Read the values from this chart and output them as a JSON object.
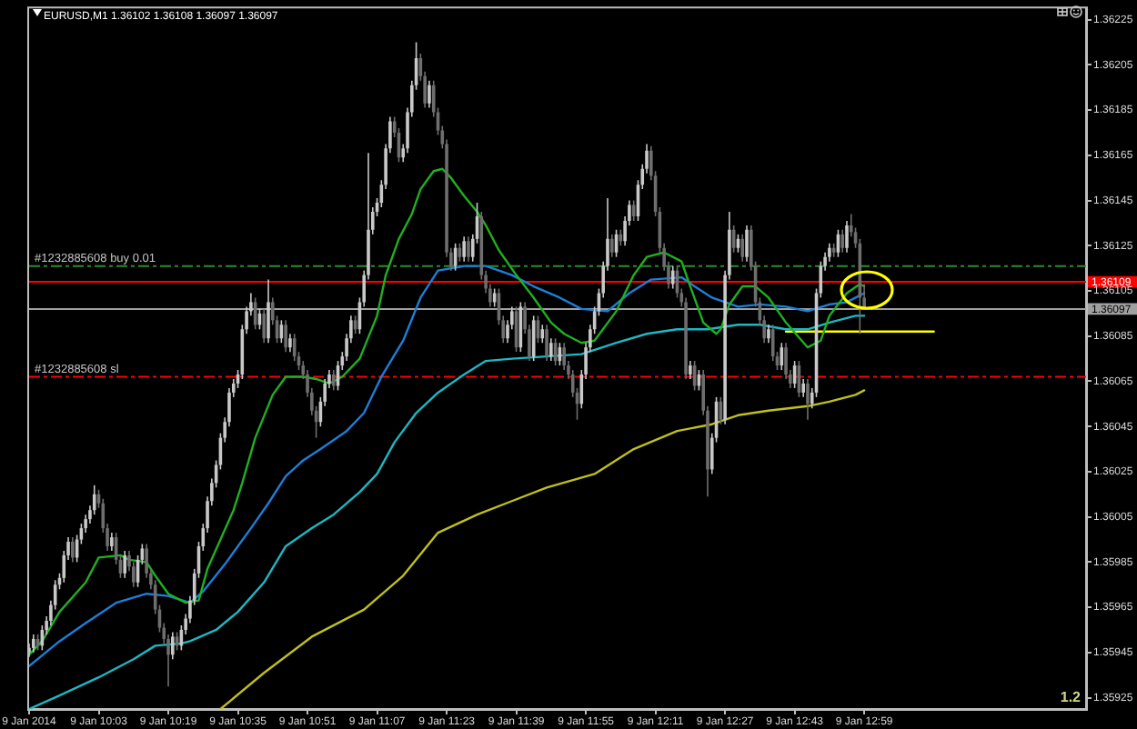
{
  "chart_data": {
    "type": "candlestick",
    "title": "EURUSD,M1 1.36102 1.36108 1.36097 1.36097",
    "xlim": [
      "2014-01-09T09:47",
      "2014-01-09T13:50"
    ],
    "ylim": [
      1.3592,
      1.3623
    ],
    "xticks": [
      {
        "value": "2014-01-09T09:47",
        "label": "9 Jan 2014"
      },
      {
        "value": "2014-01-09T10:03",
        "label": "9 Jan 10:03"
      },
      {
        "value": "2014-01-09T10:19",
        "label": "9 Jan 10:19"
      },
      {
        "value": "2014-01-09T10:35",
        "label": "9 Jan 10:35"
      },
      {
        "value": "2014-01-09T10:51",
        "label": "9 Jan 10:51"
      },
      {
        "value": "2014-01-09T11:07",
        "label": "9 Jan 11:07"
      },
      {
        "value": "2014-01-09T11:23",
        "label": "9 Jan 11:23"
      },
      {
        "value": "2014-01-09T11:39",
        "label": "9 Jan 11:39"
      },
      {
        "value": "2014-01-09T11:55",
        "label": "9 Jan 11:55"
      },
      {
        "value": "2014-01-09T12:11",
        "label": "9 Jan 12:11"
      },
      {
        "value": "2014-01-09T12:27",
        "label": "9 Jan 12:27"
      },
      {
        "value": "2014-01-09T12:43",
        "label": "9 Jan 12:43"
      },
      {
        "value": "2014-01-09T12:59",
        "label": "9 Jan 12:59"
      }
    ],
    "yticks": [
      1.35925,
      1.35945,
      1.35965,
      1.35985,
      1.36005,
      1.36025,
      1.36045,
      1.36065,
      1.36085,
      1.36105,
      1.36125,
      1.36145,
      1.36165,
      1.36185,
      1.36205,
      1.36225
    ],
    "x": [
      "2014-01-09T09:47",
      "2014-01-09T09:48",
      "2014-01-09T09:49",
      "2014-01-09T09:50",
      "2014-01-09T09:51",
      "2014-01-09T09:52",
      "2014-01-09T09:53",
      "2014-01-09T09:54",
      "2014-01-09T09:55",
      "2014-01-09T09:56",
      "2014-01-09T09:57",
      "2014-01-09T09:58",
      "2014-01-09T09:59",
      "2014-01-09T10:00",
      "2014-01-09T10:01",
      "2014-01-09T10:02",
      "2014-01-09T10:03",
      "2014-01-09T10:04",
      "2014-01-09T10:05",
      "2014-01-09T10:06",
      "2014-01-09T10:07",
      "2014-01-09T10:08",
      "2014-01-09T10:09",
      "2014-01-09T10:10",
      "2014-01-09T10:11",
      "2014-01-09T10:12",
      "2014-01-09T10:13",
      "2014-01-09T10:14",
      "2014-01-09T10:15",
      "2014-01-09T10:16",
      "2014-01-09T10:17",
      "2014-01-09T10:18",
      "2014-01-09T10:19",
      "2014-01-09T10:20",
      "2014-01-09T10:21",
      "2014-01-09T10:22",
      "2014-01-09T10:23",
      "2014-01-09T10:24",
      "2014-01-09T10:25",
      "2014-01-09T10:26",
      "2014-01-09T10:27",
      "2014-01-09T10:28",
      "2014-01-09T10:29",
      "2014-01-09T10:30",
      "2014-01-09T10:31",
      "2014-01-09T10:32",
      "2014-01-09T10:33",
      "2014-01-09T10:34",
      "2014-01-09T10:35",
      "2014-01-09T10:36",
      "2014-01-09T10:37",
      "2014-01-09T10:38",
      "2014-01-09T10:39",
      "2014-01-09T10:40",
      "2014-01-09T10:41",
      "2014-01-09T10:42",
      "2014-01-09T10:43",
      "2014-01-09T10:44",
      "2014-01-09T10:45",
      "2014-01-09T10:46",
      "2014-01-09T10:47",
      "2014-01-09T10:48",
      "2014-01-09T10:49",
      "2014-01-09T10:50",
      "2014-01-09T10:51",
      "2014-01-09T10:52",
      "2014-01-09T10:53",
      "2014-01-09T10:54",
      "2014-01-09T10:55",
      "2014-01-09T10:56",
      "2014-01-09T10:57",
      "2014-01-09T10:58",
      "2014-01-09T10:59",
      "2014-01-09T11:00",
      "2014-01-09T11:01",
      "2014-01-09T11:02",
      "2014-01-09T11:03",
      "2014-01-09T11:04",
      "2014-01-09T11:05",
      "2014-01-09T11:06",
      "2014-01-09T11:07",
      "2014-01-09T11:08",
      "2014-01-09T11:09",
      "2014-01-09T11:10",
      "2014-01-09T11:11",
      "2014-01-09T11:12",
      "2014-01-09T11:13",
      "2014-01-09T11:14",
      "2014-01-09T11:15",
      "2014-01-09T11:16",
      "2014-01-09T11:17",
      "2014-01-09T11:18",
      "2014-01-09T11:19",
      "2014-01-09T11:20",
      "2014-01-09T11:21",
      "2014-01-09T11:22",
      "2014-01-09T11:23",
      "2014-01-09T11:24",
      "2014-01-09T11:25",
      "2014-01-09T11:26",
      "2014-01-09T11:27",
      "2014-01-09T11:28",
      "2014-01-09T11:29",
      "2014-01-09T11:30",
      "2014-01-09T11:31",
      "2014-01-09T11:32",
      "2014-01-09T11:33",
      "2014-01-09T11:34",
      "2014-01-09T11:35",
      "2014-01-09T11:36",
      "2014-01-09T11:37",
      "2014-01-09T11:38",
      "2014-01-09T11:39",
      "2014-01-09T11:40",
      "2014-01-09T11:41",
      "2014-01-09T11:42",
      "2014-01-09T11:43",
      "2014-01-09T11:44",
      "2014-01-09T11:45",
      "2014-01-09T11:46",
      "2014-01-09T11:47",
      "2014-01-09T11:48",
      "2014-01-09T11:49",
      "2014-01-09T11:50",
      "2014-01-09T11:51",
      "2014-01-09T11:52",
      "2014-01-09T11:53",
      "2014-01-09T11:54",
      "2014-01-09T11:55",
      "2014-01-09T11:56",
      "2014-01-09T11:57",
      "2014-01-09T11:58",
      "2014-01-09T11:59",
      "2014-01-09T12:00",
      "2014-01-09T12:01",
      "2014-01-09T12:02",
      "2014-01-09T12:03",
      "2014-01-09T12:04",
      "2014-01-09T12:05",
      "2014-01-09T12:06",
      "2014-01-09T12:07",
      "2014-01-09T12:08",
      "2014-01-09T12:09",
      "2014-01-09T12:10",
      "2014-01-09T12:11",
      "2014-01-09T12:12",
      "2014-01-09T12:13",
      "2014-01-09T12:14",
      "2014-01-09T12:15",
      "2014-01-09T12:16",
      "2014-01-09T12:17",
      "2014-01-09T12:18",
      "2014-01-09T12:19",
      "2014-01-09T12:20",
      "2014-01-09T12:21",
      "2014-01-09T12:22",
      "2014-01-09T12:23",
      "2014-01-09T12:24",
      "2014-01-09T12:25",
      "2014-01-09T12:26",
      "2014-01-09T12:27",
      "2014-01-09T12:28",
      "2014-01-09T12:29",
      "2014-01-09T12:30",
      "2014-01-09T12:31",
      "2014-01-09T12:32",
      "2014-01-09T12:33",
      "2014-01-09T12:34",
      "2014-01-09T12:35",
      "2014-01-09T12:36",
      "2014-01-09T12:37",
      "2014-01-09T12:38",
      "2014-01-09T12:39",
      "2014-01-09T12:40",
      "2014-01-09T12:41",
      "2014-01-09T12:42",
      "2014-01-09T12:43",
      "2014-01-09T12:44",
      "2014-01-09T12:45",
      "2014-01-09T12:46",
      "2014-01-09T12:47",
      "2014-01-09T12:48",
      "2014-01-09T12:49",
      "2014-01-09T12:50",
      "2014-01-09T12:51",
      "2014-01-09T12:52",
      "2014-01-09T12:53",
      "2014-01-09T12:54",
      "2014-01-09T12:55",
      "2014-01-09T12:56",
      "2014-01-09T12:57",
      "2014-01-09T12:58",
      "2014-01-09T12:59"
    ],
    "ohlc": [
      [
        1.35945,
        1.35949,
        1.35943,
        1.35947
      ],
      [
        1.35947,
        1.35953,
        1.35945,
        1.35951
      ],
      [
        1.35951,
        1.35953,
        1.35946,
        1.35948
      ],
      [
        1.35948,
        1.35957,
        1.35946,
        1.35955
      ],
      [
        1.35955,
        1.35961,
        1.35953,
        1.35959
      ],
      [
        1.35959,
        1.35968,
        1.35957,
        1.35966
      ],
      [
        1.35966,
        1.35977,
        1.35964,
        1.35975
      ],
      [
        1.35975,
        1.3598,
        1.35973,
        1.35978
      ],
      [
        1.35978,
        1.3599,
        1.35976,
        1.35988
      ],
      [
        1.35988,
        1.35996,
        1.35986,
        1.35994
      ],
      [
        1.35994,
        1.35996,
        1.35985,
        1.35987
      ],
      [
        1.35987,
        1.35997,
        1.35985,
        1.35995
      ],
      [
        1.35995,
        1.36002,
        1.35993,
        1.36
      ],
      [
        1.36,
        1.36006,
        1.35998,
        1.36004
      ],
      [
        1.36004,
        1.3601,
        1.36002,
        1.36008
      ],
      [
        1.36008,
        1.36019,
        1.36006,
        1.36015
      ],
      [
        1.36015,
        1.36017,
        1.36009,
        1.36011
      ],
      [
        1.36011,
        1.36013,
        1.35998,
        1.36
      ],
      [
        1.36,
        1.36002,
        1.3599,
        1.35992
      ],
      [
        1.35992,
        1.35998,
        1.3599,
        1.35996
      ],
      [
        1.35996,
        1.35998,
        1.35984,
        1.35986
      ],
      [
        1.35986,
        1.35988,
        1.35978,
        1.3598
      ],
      [
        1.3598,
        1.3599,
        1.35978,
        1.35988
      ],
      [
        1.35988,
        1.3599,
        1.35981,
        1.35983
      ],
      [
        1.35983,
        1.35985,
        1.35974,
        1.35976
      ],
      [
        1.35976,
        1.35988,
        1.35974,
        1.35986
      ],
      [
        1.35986,
        1.35993,
        1.35984,
        1.35991
      ],
      [
        1.35991,
        1.35993,
        1.35978,
        1.3598
      ],
      [
        1.3598,
        1.35982,
        1.35973,
        1.35975
      ],
      [
        1.35975,
        1.35977,
        1.35962,
        1.35964
      ],
      [
        1.35964,
        1.35966,
        1.35954,
        1.35956
      ],
      [
        1.35956,
        1.35958,
        1.35949,
        1.35951
      ],
      [
        1.35951,
        1.35953,
        1.3593,
        1.35944
      ],
      [
        1.35944,
        1.35954,
        1.35942,
        1.35952
      ],
      [
        1.35952,
        1.35954,
        1.35946,
        1.35948
      ],
      [
        1.35948,
        1.35957,
        1.35946,
        1.35955
      ],
      [
        1.35955,
        1.35962,
        1.35953,
        1.3596
      ],
      [
        1.3596,
        1.3597,
        1.35958,
        1.35968
      ],
      [
        1.35968,
        1.35982,
        1.35966,
        1.3598
      ],
      [
        1.3598,
        1.35994,
        1.35978,
        1.35992
      ],
      [
        1.35992,
        1.36002,
        1.3599,
        1.36
      ],
      [
        1.36,
        1.36014,
        1.35998,
        1.36012
      ],
      [
        1.36012,
        1.36022,
        1.3601,
        1.3602
      ],
      [
        1.3602,
        1.3603,
        1.36018,
        1.36028
      ],
      [
        1.36028,
        1.36042,
        1.36026,
        1.3604
      ],
      [
        1.3604,
        1.36049,
        1.36038,
        1.36047
      ],
      [
        1.36047,
        1.36062,
        1.36045,
        1.3606
      ],
      [
        1.3606,
        1.36066,
        1.36058,
        1.36064
      ],
      [
        1.36064,
        1.3607,
        1.36062,
        1.36068
      ],
      [
        1.36068,
        1.3609,
        1.36066,
        1.36088
      ],
      [
        1.36088,
        1.36098,
        1.36086,
        1.36096
      ],
      [
        1.36096,
        1.36104,
        1.36094,
        1.361
      ],
      [
        1.361,
        1.36102,
        1.36088,
        1.3609
      ],
      [
        1.3609,
        1.36097,
        1.36088,
        1.36095
      ],
      [
        1.36095,
        1.36097,
        1.36082,
        1.36084
      ],
      [
        1.36084,
        1.3611,
        1.36082,
        1.361
      ],
      [
        1.361,
        1.36102,
        1.3609,
        1.36092
      ],
      [
        1.36092,
        1.36094,
        1.36082,
        1.36084
      ],
      [
        1.36084,
        1.36092,
        1.36082,
        1.3609
      ],
      [
        1.3609,
        1.36092,
        1.36078,
        1.3608
      ],
      [
        1.3608,
        1.36086,
        1.36078,
        1.36084
      ],
      [
        1.36084,
        1.36086,
        1.36074,
        1.36076
      ],
      [
        1.36076,
        1.36078,
        1.3607,
        1.36072
      ],
      [
        1.36072,
        1.36074,
        1.36066,
        1.36068
      ],
      [
        1.36068,
        1.3607,
        1.36058,
        1.3606
      ],
      [
        1.3606,
        1.36062,
        1.3605,
        1.36052
      ],
      [
        1.36052,
        1.36054,
        1.3604,
        1.36047
      ],
      [
        1.36047,
        1.36058,
        1.36045,
        1.36056
      ],
      [
        1.36056,
        1.36066,
        1.36054,
        1.36064
      ],
      [
        1.36064,
        1.3607,
        1.36062,
        1.36068
      ],
      [
        1.36068,
        1.3607,
        1.36061,
        1.36063
      ],
      [
        1.36063,
        1.36074,
        1.36061,
        1.36072
      ],
      [
        1.36072,
        1.36078,
        1.3607,
        1.36076
      ],
      [
        1.36076,
        1.36086,
        1.36074,
        1.36084
      ],
      [
        1.36084,
        1.36094,
        1.36082,
        1.36092
      ],
      [
        1.36092,
        1.36094,
        1.36086,
        1.36088
      ],
      [
        1.36088,
        1.36102,
        1.36086,
        1.361
      ],
      [
        1.361,
        1.36114,
        1.36098,
        1.36112
      ],
      [
        1.36112,
        1.36166,
        1.3611,
        1.36132
      ],
      [
        1.36132,
        1.36142,
        1.3613,
        1.3614
      ],
      [
        1.3614,
        1.36146,
        1.36138,
        1.36144
      ],
      [
        1.36144,
        1.36154,
        1.36142,
        1.36152
      ],
      [
        1.36152,
        1.3617,
        1.3615,
        1.36168
      ],
      [
        1.36168,
        1.36182,
        1.36166,
        1.3618
      ],
      [
        1.3618,
        1.36182,
        1.36173,
        1.36175
      ],
      [
        1.36175,
        1.36177,
        1.36162,
        1.36164
      ],
      [
        1.36164,
        1.3617,
        1.36162,
        1.36168
      ],
      [
        1.36168,
        1.36186,
        1.36166,
        1.36184
      ],
      [
        1.36184,
        1.36198,
        1.36182,
        1.36196
      ],
      [
        1.36196,
        1.36215,
        1.36194,
        1.36208
      ],
      [
        1.36208,
        1.3621,
        1.36198,
        1.362
      ],
      [
        1.362,
        1.36202,
        1.36186,
        1.36188
      ],
      [
        1.36188,
        1.36198,
        1.36186,
        1.36196
      ],
      [
        1.36196,
        1.36198,
        1.36182,
        1.36184
      ],
      [
        1.36184,
        1.36186,
        1.36174,
        1.36176
      ],
      [
        1.36176,
        1.36178,
        1.36168,
        1.3617
      ],
      [
        1.3617,
        1.36172,
        1.3612,
        1.36122
      ],
      [
        1.36122,
        1.36124,
        1.36114,
        1.36116
      ],
      [
        1.36116,
        1.36126,
        1.36114,
        1.36124
      ],
      [
        1.36124,
        1.36126,
        1.36118,
        1.3612
      ],
      [
        1.3612,
        1.36129,
        1.36118,
        1.36127
      ],
      [
        1.36127,
        1.36129,
        1.36118,
        1.3612
      ],
      [
        1.3612,
        1.3613,
        1.36118,
        1.36128
      ],
      [
        1.36128,
        1.36144,
        1.36126,
        1.36138
      ],
      [
        1.36138,
        1.3614,
        1.3611,
        1.36112
      ],
      [
        1.36112,
        1.36114,
        1.36104,
        1.36106
      ],
      [
        1.36106,
        1.36108,
        1.36098,
        1.361
      ],
      [
        1.361,
        1.36106,
        1.36098,
        1.36104
      ],
      [
        1.36104,
        1.36106,
        1.3609,
        1.36092
      ],
      [
        1.36092,
        1.36094,
        1.36082,
        1.36084
      ],
      [
        1.36084,
        1.36092,
        1.36082,
        1.3609
      ],
      [
        1.3609,
        1.36098,
        1.36088,
        1.36096
      ],
      [
        1.36096,
        1.36098,
        1.36078,
        1.3608
      ],
      [
        1.3608,
        1.361,
        1.36078,
        1.36098
      ],
      [
        1.36098,
        1.361,
        1.36086,
        1.36088
      ],
      [
        1.36088,
        1.3609,
        1.36074,
        1.36076
      ],
      [
        1.36076,
        1.36094,
        1.36074,
        1.36092
      ],
      [
        1.36092,
        1.36094,
        1.36082,
        1.36084
      ],
      [
        1.36084,
        1.3609,
        1.36082,
        1.36088
      ],
      [
        1.36088,
        1.3609,
        1.36074,
        1.36076
      ],
      [
        1.36076,
        1.36084,
        1.36074,
        1.36082
      ],
      [
        1.36082,
        1.36084,
        1.36072,
        1.36074
      ],
      [
        1.36074,
        1.36082,
        1.36072,
        1.3608
      ],
      [
        1.3608,
        1.36082,
        1.3607,
        1.36072
      ],
      [
        1.36072,
        1.36074,
        1.36066,
        1.36068
      ],
      [
        1.36068,
        1.3607,
        1.36058,
        1.3606
      ],
      [
        1.3606,
        1.36062,
        1.36048,
        1.36055
      ],
      [
        1.36055,
        1.3607,
        1.36053,
        1.36068
      ],
      [
        1.36068,
        1.36082,
        1.36066,
        1.3608
      ],
      [
        1.3608,
        1.3609,
        1.36078,
        1.36088
      ],
      [
        1.36088,
        1.36098,
        1.36086,
        1.36096
      ],
      [
        1.36096,
        1.36106,
        1.36094,
        1.36104
      ],
      [
        1.36104,
        1.36118,
        1.36102,
        1.36116
      ],
      [
        1.36116,
        1.36146,
        1.36114,
        1.36128
      ],
      [
        1.36128,
        1.3613,
        1.3612,
        1.36122
      ],
      [
        1.36122,
        1.36132,
        1.3612,
        1.3613
      ],
      [
        1.3613,
        1.36132,
        1.36125,
        1.36127
      ],
      [
        1.36127,
        1.36138,
        1.36125,
        1.36136
      ],
      [
        1.36136,
        1.36145,
        1.36134,
        1.36143
      ],
      [
        1.36143,
        1.36145,
        1.36136,
        1.36138
      ],
      [
        1.36138,
        1.36154,
        1.36136,
        1.36152
      ],
      [
        1.36152,
        1.36161,
        1.3615,
        1.36159
      ],
      [
        1.36159,
        1.3617,
        1.36157,
        1.36167
      ],
      [
        1.36167,
        1.36169,
        1.36154,
        1.36156
      ],
      [
        1.36156,
        1.36158,
        1.36138,
        1.3614
      ],
      [
        1.3614,
        1.36142,
        1.36122,
        1.36124
      ],
      [
        1.36124,
        1.36126,
        1.36114,
        1.36116
      ],
      [
        1.36116,
        1.36118,
        1.36106,
        1.36108
      ],
      [
        1.36108,
        1.36116,
        1.36106,
        1.36114
      ],
      [
        1.36114,
        1.36116,
        1.36102,
        1.36104
      ],
      [
        1.36104,
        1.36106,
        1.36098,
        1.361
      ],
      [
        1.361,
        1.36102,
        1.36066,
        1.36068
      ],
      [
        1.36068,
        1.36074,
        1.36066,
        1.36072
      ],
      [
        1.36072,
        1.36074,
        1.36061,
        1.36063
      ],
      [
        1.36063,
        1.3607,
        1.36061,
        1.36068
      ],
      [
        1.36068,
        1.3607,
        1.3605,
        1.36052
      ],
      [
        1.36052,
        1.36054,
        1.36014,
        1.36026
      ],
      [
        1.36026,
        1.36042,
        1.36024,
        1.3604
      ],
      [
        1.3604,
        1.36058,
        1.36038,
        1.36056
      ],
      [
        1.36056,
        1.36058,
        1.36046,
        1.36048
      ],
      [
        1.36048,
        1.36114,
        1.36046,
        1.36112
      ],
      [
        1.36112,
        1.3614,
        1.3611,
        1.36132
      ],
      [
        1.36132,
        1.36134,
        1.36122,
        1.36124
      ],
      [
        1.36124,
        1.3613,
        1.36122,
        1.36128
      ],
      [
        1.36128,
        1.3613,
        1.36118,
        1.3612
      ],
      [
        1.3612,
        1.36134,
        1.36118,
        1.36132
      ],
      [
        1.36132,
        1.36134,
        1.36114,
        1.36116
      ],
      [
        1.36116,
        1.36118,
        1.36098,
        1.361
      ],
      [
        1.361,
        1.36102,
        1.3609,
        1.36092
      ],
      [
        1.36092,
        1.36094,
        1.36082,
        1.36084
      ],
      [
        1.36084,
        1.3609,
        1.36082,
        1.36088
      ],
      [
        1.36088,
        1.3609,
        1.36074,
        1.36076
      ],
      [
        1.36076,
        1.36078,
        1.3607,
        1.36072
      ],
      [
        1.36072,
        1.36082,
        1.3607,
        1.3608
      ],
      [
        1.3608,
        1.36082,
        1.36066,
        1.36068
      ],
      [
        1.36068,
        1.3607,
        1.36062,
        1.36064
      ],
      [
        1.36064,
        1.36074,
        1.36062,
        1.36072
      ],
      [
        1.36072,
        1.36074,
        1.36058,
        1.3606
      ],
      [
        1.3606,
        1.36066,
        1.36058,
        1.36064
      ],
      [
        1.36064,
        1.36066,
        1.36048,
        1.36055
      ],
      [
        1.36055,
        1.36062,
        1.36053,
        1.3606
      ],
      [
        1.3606,
        1.36106,
        1.36058,
        1.36104
      ],
      [
        1.36104,
        1.36118,
        1.36102,
        1.36116
      ],
      [
        1.36116,
        1.36122,
        1.36114,
        1.3612
      ],
      [
        1.3612,
        1.36126,
        1.36118,
        1.36124
      ],
      [
        1.36124,
        1.36126,
        1.3612,
        1.36122
      ],
      [
        1.36122,
        1.36132,
        1.3612,
        1.3613
      ],
      [
        1.3613,
        1.36132,
        1.36122,
        1.36124
      ],
      [
        1.36124,
        1.36136,
        1.36122,
        1.36134
      ],
      [
        1.36134,
        1.36139,
        1.36129,
        1.36131
      ],
      [
        1.36131,
        1.36133,
        1.36124,
        1.36126
      ],
      [
        1.36126,
        1.36128,
        1.36086,
        1.36102
      ],
      [
        1.36102,
        1.36108,
        1.36097,
        1.36097
      ]
    ],
    "colors": [
      "#c8c8c8",
      "#c8c8c8",
      "#6e6e6e",
      "#c8c8c8",
      "#c8c8c8",
      "#c8c8c8",
      "#c8c8c8",
      "#c8c8c8",
      "#c8c8c8",
      "#c8c8c8",
      "#6e6e6e",
      "#c8c8c8",
      "#c8c8c8",
      "#c8c8c8",
      "#c8c8c8",
      "#c8c8c8",
      "#6e6e6e",
      "#6e6e6e",
      "#6e6e6e",
      "#c8c8c8",
      "#6e6e6e",
      "#6e6e6e",
      "#c8c8c8",
      "#6e6e6e",
      "#6e6e6e",
      "#c8c8c8",
      "#c8c8c8",
      "#6e6e6e",
      "#6e6e6e",
      "#6e6e6e",
      "#6e6e6e",
      "#6e6e6e",
      "#6e6e6e",
      "#c8c8c8",
      "#6e6e6e",
      "#c8c8c8",
      "#c8c8c8",
      "#c8c8c8",
      "#c8c8c8",
      "#c8c8c8",
      "#c8c8c8",
      "#c8c8c8",
      "#c8c8c8",
      "#c8c8c8",
      "#c8c8c8",
      "#c8c8c8",
      "#c8c8c8",
      "#c8c8c8",
      "#c8c8c8",
      "#c8c8c8",
      "#c8c8c8",
      "#c8c8c8",
      "#6e6e6e",
      "#c8c8c8",
      "#6e6e6e",
      "#c8c8c8",
      "#6e6e6e",
      "#6e6e6e",
      "#c8c8c8",
      "#6e6e6e",
      "#c8c8c8",
      "#6e6e6e",
      "#6e6e6e",
      "#6e6e6e",
      "#6e6e6e",
      "#6e6e6e",
      "#6e6e6e",
      "#c8c8c8",
      "#c8c8c8",
      "#c8c8c8",
      "#6e6e6e",
      "#c8c8c8",
      "#c8c8c8",
      "#c8c8c8",
      "#c8c8c8",
      "#6e6e6e",
      "#c8c8c8",
      "#c8c8c8",
      "#c8c8c8",
      "#c8c8c8",
      "#c8c8c8",
      "#c8c8c8",
      "#c8c8c8",
      "#c8c8c8",
      "#6e6e6e",
      "#6e6e6e",
      "#c8c8c8",
      "#c8c8c8",
      "#c8c8c8",
      "#c8c8c8",
      "#6e6e6e",
      "#6e6e6e",
      "#c8c8c8",
      "#6e6e6e",
      "#6e6e6e",
      "#6e6e6e",
      "#6e6e6e",
      "#6e6e6e",
      "#c8c8c8",
      "#6e6e6e",
      "#c8c8c8",
      "#6e6e6e",
      "#c8c8c8",
      "#c8c8c8",
      "#6e6e6e",
      "#6e6e6e",
      "#6e6e6e",
      "#c8c8c8",
      "#6e6e6e",
      "#6e6e6e",
      "#c8c8c8",
      "#c8c8c8",
      "#6e6e6e",
      "#c8c8c8",
      "#6e6e6e",
      "#6e6e6e",
      "#c8c8c8",
      "#6e6e6e",
      "#c8c8c8",
      "#6e6e6e",
      "#c8c8c8",
      "#6e6e6e",
      "#c8c8c8",
      "#6e6e6e",
      "#6e6e6e",
      "#6e6e6e",
      "#6e6e6e",
      "#c8c8c8",
      "#c8c8c8",
      "#c8c8c8",
      "#c8c8c8",
      "#c8c8c8",
      "#c8c8c8",
      "#c8c8c8",
      "#6e6e6e",
      "#c8c8c8",
      "#6e6e6e",
      "#c8c8c8",
      "#c8c8c8",
      "#6e6e6e",
      "#c8c8c8",
      "#c8c8c8",
      "#c8c8c8",
      "#6e6e6e",
      "#6e6e6e",
      "#6e6e6e",
      "#6e6e6e",
      "#6e6e6e",
      "#c8c8c8",
      "#6e6e6e",
      "#6e6e6e",
      "#6e6e6e",
      "#c8c8c8",
      "#6e6e6e",
      "#c8c8c8",
      "#6e6e6e",
      "#6e6e6e",
      "#c8c8c8",
      "#c8c8c8",
      "#6e6e6e",
      "#c8c8c8",
      "#c8c8c8",
      "#6e6e6e",
      "#c8c8c8",
      "#6e6e6e",
      "#c8c8c8",
      "#6e6e6e",
      "#6e6e6e",
      "#6e6e6e",
      "#6e6e6e",
      "#c8c8c8",
      "#6e6e6e",
      "#6e6e6e",
      "#c8c8c8",
      "#6e6e6e",
      "#6e6e6e",
      "#c8c8c8",
      "#6e6e6e",
      "#c8c8c8",
      "#6e6e6e",
      "#c8c8c8",
      "#c8c8c8",
      "#c8c8c8",
      "#c8c8c8",
      "#c8c8c8",
      "#6e6e6e",
      "#c8c8c8",
      "#6e6e6e",
      "#c8c8c8",
      "#6e6e6e",
      "#6e6e6e",
      "#6e6e6e",
      "#6e6e6e"
    ],
    "series": [
      {
        "type": "line",
        "color": "#20b020",
        "x": [
          "2014-01-09T09:47",
          "2014-01-09T09:50",
          "2014-01-09T09:54",
          "2014-01-09T10:00",
          "2014-01-09T10:03",
          "2014-01-09T10:08",
          "2014-01-09T10:10",
          "2014-01-09T10:14",
          "2014-01-09T10:16",
          "2014-01-09T10:19",
          "2014-01-09T10:23",
          "2014-01-09T10:26",
          "2014-01-09T10:28",
          "2014-01-09T10:31",
          "2014-01-09T10:34",
          "2014-01-09T10:36",
          "2014-01-09T10:39",
          "2014-01-09T10:43",
          "2014-01-09T10:46",
          "2014-01-09T10:50",
          "2014-01-09T10:53",
          "2014-01-09T10:56",
          "2014-01-09T10:59",
          "2014-01-09T11:03",
          "2014-01-09T11:07",
          "2014-01-09T11:09",
          "2014-01-09T11:12",
          "2014-01-09T11:15",
          "2014-01-09T11:17",
          "2014-01-09T11:20",
          "2014-01-09T11:22",
          "2014-01-09T11:24",
          "2014-01-09T11:27",
          "2014-01-09T11:30",
          "2014-01-09T11:32",
          "2014-01-09T11:35",
          "2014-01-09T11:39",
          "2014-01-09T11:43",
          "2014-01-09T11:47",
          "2014-01-09T11:50",
          "2014-01-09T11:54",
          "2014-01-09T11:57",
          "2014-01-09T12:02",
          "2014-01-09T12:06",
          "2014-01-09T12:09",
          "2014-01-09T12:13",
          "2014-01-09T12:17",
          "2014-01-09T12:19",
          "2014-01-09T12:22",
          "2014-01-09T12:25",
          "2014-01-09T12:26",
          "2014-01-09T12:28",
          "2014-01-09T12:31",
          "2014-01-09T12:34",
          "2014-01-09T12:37",
          "2014-01-09T12:41",
          "2014-01-09T12:46",
          "2014-01-09T12:49",
          "2014-01-09T12:51",
          "2014-01-09T12:55",
          "2014-01-09T12:58",
          "2014-01-09T12:59"
        ],
        "values": [
          1.35944,
          1.3595,
          1.35963,
          1.35976,
          1.35987,
          1.35988,
          1.35986,
          1.35985,
          1.35979,
          1.35971,
          1.35967,
          1.35968,
          1.35982,
          1.35995,
          1.36008,
          1.3602,
          1.3604,
          1.36059,
          1.36067,
          1.36067,
          1.36066,
          1.36064,
          1.36067,
          1.36075,
          1.36094,
          1.36112,
          1.36128,
          1.36139,
          1.3615,
          1.36158,
          1.36159,
          1.36155,
          1.36147,
          1.3614,
          1.36134,
          1.36123,
          1.36112,
          1.36102,
          1.36091,
          1.36086,
          1.36082,
          1.36083,
          1.36096,
          1.36112,
          1.3612,
          1.36122,
          1.36118,
          1.36107,
          1.36091,
          1.36086,
          1.36088,
          1.36099,
          1.36107,
          1.36107,
          1.36102,
          1.36091,
          1.3608,
          1.36083,
          1.36094,
          1.36104,
          1.36108,
          1.36107
        ]
      },
      {
        "type": "line",
        "color": "#1c7fd8",
        "x": [
          "2014-01-09T09:47",
          "2014-01-09T09:54",
          "2014-01-09T10:00",
          "2014-01-09T10:07",
          "2014-01-09T10:14",
          "2014-01-09T10:19",
          "2014-01-09T10:24",
          "2014-01-09T10:27",
          "2014-01-09T10:32",
          "2014-01-09T10:38",
          "2014-01-09T10:42",
          "2014-01-09T10:46",
          "2014-01-09T10:50",
          "2014-01-09T10:54",
          "2014-01-09T11:00",
          "2014-01-09T11:04",
          "2014-01-09T11:08",
          "2014-01-09T11:13",
          "2014-01-09T11:17",
          "2014-01-09T11:21",
          "2014-01-09T11:27",
          "2014-01-09T11:32",
          "2014-01-09T11:38",
          "2014-01-09T11:43",
          "2014-01-09T11:49",
          "2014-01-09T11:54",
          "2014-01-09T12:00",
          "2014-01-09T12:05",
          "2014-01-09T12:10",
          "2014-01-09T12:17",
          "2014-01-09T12:20",
          "2014-01-09T12:24",
          "2014-01-09T12:30",
          "2014-01-09T12:35",
          "2014-01-09T12:41",
          "2014-01-09T12:46",
          "2014-01-09T12:51",
          "2014-01-09T12:55",
          "2014-01-09T12:59"
        ],
        "values": [
          1.35939,
          1.3595,
          1.35958,
          1.35967,
          1.35971,
          1.3597,
          1.35967,
          1.35972,
          1.35984,
          1.36,
          1.36011,
          1.36023,
          1.3603,
          1.36035,
          1.36043,
          1.36051,
          1.36067,
          1.36083,
          1.36102,
          1.36114,
          1.36116,
          1.36116,
          1.36112,
          1.36107,
          1.36102,
          1.36097,
          1.36096,
          1.36104,
          1.3611,
          1.36111,
          1.36107,
          1.36102,
          1.36098,
          1.36099,
          1.36098,
          1.36096,
          1.36099,
          1.361,
          1.36104
        ]
      },
      {
        "type": "line",
        "color": "#1cb8c4",
        "x": [
          "2014-01-09T09:47",
          "2014-01-09T09:54",
          "2014-01-09T10:03",
          "2014-01-09T10:11",
          "2014-01-09T10:16",
          "2014-01-09T10:22",
          "2014-01-09T10:24",
          "2014-01-09T10:30",
          "2014-01-09T10:35",
          "2014-01-09T10:41",
          "2014-01-09T10:46",
          "2014-01-09T10:52",
          "2014-01-09T10:57",
          "2014-01-09T11:03",
          "2014-01-09T11:07",
          "2014-01-09T11:11",
          "2014-01-09T11:16",
          "2014-01-09T11:21",
          "2014-01-09T11:27",
          "2014-01-09T11:32",
          "2014-01-09T11:38",
          "2014-01-09T11:46",
          "2014-01-09T11:54",
          "2014-01-09T12:02",
          "2014-01-09T12:09",
          "2014-01-09T12:16",
          "2014-01-09T12:23",
          "2014-01-09T12:30",
          "2014-01-09T12:35",
          "2014-01-09T12:41",
          "2014-01-09T12:46",
          "2014-01-09T12:51",
          "2014-01-09T12:57",
          "2014-01-09T12:59"
        ],
        "values": [
          1.3592,
          1.35926,
          1.35934,
          1.35942,
          1.35948,
          1.35949,
          1.3595,
          1.35955,
          1.35963,
          1.35976,
          1.35992,
          1.36,
          1.36006,
          1.36016,
          1.36024,
          1.36038,
          1.36051,
          1.3606,
          1.36068,
          1.36074,
          1.36075,
          1.36076,
          1.36077,
          1.36082,
          1.36086,
          1.36088,
          1.36088,
          1.3609,
          1.3609,
          1.36088,
          1.36088,
          1.36091,
          1.36094,
          1.36094
        ]
      },
      {
        "type": "line",
        "color": "#c0c01a",
        "x": [
          "2014-01-09T10:31",
          "2014-01-09T10:41",
          "2014-01-09T10:52",
          "2014-01-09T11:04",
          "2014-01-09T11:13",
          "2014-01-09T11:21",
          "2014-01-09T11:30",
          "2014-01-09T11:38",
          "2014-01-09T11:46",
          "2014-01-09T11:57",
          "2014-01-09T12:06",
          "2014-01-09T12:16",
          "2014-01-09T12:24",
          "2014-01-09T12:30",
          "2014-01-09T12:37",
          "2014-01-09T12:46",
          "2014-01-09T12:51",
          "2014-01-09T12:57",
          "2014-01-09T12:59"
        ],
        "values": [
          1.3592,
          1.35936,
          1.35952,
          1.35964,
          1.35979,
          1.35998,
          1.36006,
          1.36012,
          1.36018,
          1.36024,
          1.36035,
          1.36043,
          1.36046,
          1.3605,
          1.36052,
          1.36054,
          1.36056,
          1.36059,
          1.36061
        ]
      },
      {
        "type": "line",
        "color": "#ffff00",
        "x": [
          "2014-01-09T12:41",
          "2014-01-09T13:15"
        ],
        "values": [
          1.36087,
          1.36087
        ]
      }
    ],
    "ref_lines": [
      {
        "axis": "y",
        "value": 1.36116,
        "label": "#1232885608 buy 0.01",
        "color": "#2d8a2d",
        "line_style": "dashed"
      },
      {
        "axis": "y",
        "value": 1.36109,
        "label": "1.36109",
        "color": "#ff0000",
        "line_style": "solid"
      },
      {
        "axis": "y",
        "value": 1.36097,
        "label": "1.36097",
        "color": "#a0a0a0",
        "line_style": "solid"
      },
      {
        "axis": "y",
        "value": 1.36067,
        "label": "#1232885608 sl",
        "color": "#ff0000",
        "line_style": "dashed"
      }
    ],
    "annotations": [
      "1.2"
    ]
  }
}
